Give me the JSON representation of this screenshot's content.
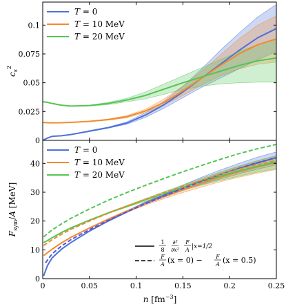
{
  "chart_data": [
    {
      "type": "line",
      "panel": "top",
      "ylabel": "c_s^2",
      "xlim": [
        0,
        0.25
      ],
      "ylim": [
        0,
        0.12
      ],
      "yticks": [
        "0",
        "0.025",
        "0.05",
        "0.075",
        "0.1"
      ],
      "ytick_values": [
        0,
        0.025,
        0.05,
        0.075,
        0.1
      ],
      "legend_position": "top-left",
      "series": [
        {
          "name": "T = 0",
          "color": "#4c72d9",
          "x": [
            0.0,
            0.005,
            0.01,
            0.02,
            0.03,
            0.05,
            0.07,
            0.09,
            0.11,
            0.13,
            0.15,
            0.17,
            0.19,
            0.21,
            0.23,
            0.25
          ],
          "y": [
            0.0,
            0.002,
            0.0035,
            0.004,
            0.005,
            0.008,
            0.011,
            0.015,
            0.022,
            0.031,
            0.042,
            0.054,
            0.066,
            0.078,
            0.089,
            0.097
          ],
          "band_low": [
            0.0,
            0.002,
            0.0035,
            0.004,
            0.005,
            0.0075,
            0.0105,
            0.014,
            0.02,
            0.028,
            0.037,
            0.046,
            0.054,
            0.062,
            0.07,
            0.077
          ],
          "band_high": [
            0.0,
            0.002,
            0.0035,
            0.004,
            0.005,
            0.0085,
            0.0115,
            0.016,
            0.024,
            0.034,
            0.047,
            0.062,
            0.078,
            0.093,
            0.107,
            0.118
          ]
        },
        {
          "name": "T = 10 MeV",
          "color": "#f28a2c",
          "x": [
            0.0,
            0.005,
            0.01,
            0.02,
            0.03,
            0.05,
            0.07,
            0.09,
            0.11,
            0.13,
            0.15,
            0.17,
            0.19,
            0.21,
            0.23,
            0.25
          ],
          "y": [
            0.0155,
            0.0153,
            0.0152,
            0.0153,
            0.0156,
            0.0165,
            0.018,
            0.0205,
            0.0255,
            0.033,
            0.043,
            0.054,
            0.065,
            0.075,
            0.083,
            0.088
          ],
          "band_low": [
            0.0155,
            0.0153,
            0.0152,
            0.0153,
            0.0155,
            0.0162,
            0.0175,
            0.0195,
            0.024,
            0.031,
            0.039,
            0.048,
            0.056,
            0.062,
            0.066,
            0.068
          ],
          "band_high": [
            0.0155,
            0.0153,
            0.0152,
            0.0153,
            0.0157,
            0.0168,
            0.0185,
            0.0215,
            0.027,
            0.036,
            0.047,
            0.06,
            0.074,
            0.088,
            0.1,
            0.108
          ]
        },
        {
          "name": "T = 20 MeV",
          "color": "#55c455",
          "x": [
            0.0,
            0.005,
            0.01,
            0.02,
            0.03,
            0.05,
            0.07,
            0.09,
            0.11,
            0.13,
            0.15,
            0.17,
            0.19,
            0.21,
            0.23,
            0.25
          ],
          "y": [
            0.0335,
            0.033,
            0.032,
            0.0305,
            0.0298,
            0.0302,
            0.032,
            0.035,
            0.039,
            0.0445,
            0.05,
            0.055,
            0.06,
            0.065,
            0.069,
            0.0715
          ],
          "band_low": [
            0.0335,
            0.033,
            0.032,
            0.0304,
            0.0296,
            0.0298,
            0.031,
            0.0335,
            0.036,
            0.04,
            0.044,
            0.047,
            0.049,
            0.05,
            0.0505,
            0.0505
          ],
          "band_high": [
            0.0335,
            0.033,
            0.032,
            0.0306,
            0.03,
            0.0306,
            0.033,
            0.0365,
            0.042,
            0.049,
            0.056,
            0.063,
            0.07,
            0.077,
            0.083,
            0.088
          ]
        }
      ]
    },
    {
      "type": "line",
      "panel": "bottom",
      "xlabel": "n [fm^-3]",
      "ylabel": "F_sym/A [MeV]",
      "xlim": [
        0,
        0.25
      ],
      "ylim": [
        0,
        48
      ],
      "xticks": [
        "0",
        "0.05",
        "0.1",
        "0.15",
        "0.2",
        "0.25"
      ],
      "xtick_values": [
        0,
        0.05,
        0.1,
        0.15,
        0.2,
        0.25
      ],
      "yticks": [
        "0",
        "10",
        "20",
        "30",
        "40"
      ],
      "ytick_values": [
        0,
        10,
        20,
        30,
        40
      ],
      "legend_position": "top-left",
      "style_legend_position": "lower-right",
      "style_legend": [
        {
          "style": "solid",
          "label_parts": [
            "1",
            "8",
            "∂²",
            "∂x²",
            "F",
            "A",
            "|x=1/2"
          ]
        },
        {
          "style": "dashed",
          "label_parts": [
            "F",
            "A",
            "(x = 0) −",
            "F",
            "A",
            "(x = 0.5)"
          ]
        }
      ],
      "series": [
        {
          "name": "T = 0",
          "style": "solid",
          "color": "#4c72d9",
          "x": [
            0.001,
            0.005,
            0.01,
            0.02,
            0.03,
            0.05,
            0.07,
            0.09,
            0.11,
            0.13,
            0.15,
            0.17,
            0.19,
            0.21,
            0.23,
            0.25
          ],
          "y": [
            1.0,
            4.5,
            7.2,
            10.2,
            12.5,
            16.5,
            20.0,
            23.2,
            26.3,
            29.0,
            31.6,
            34.0,
            36.2,
            38.3,
            40.2,
            42.0
          ],
          "band_low": [
            1.0,
            4.5,
            7.2,
            10.2,
            12.5,
            16.4,
            19.8,
            22.9,
            25.8,
            28.3,
            30.6,
            32.7,
            34.6,
            36.4,
            38.0,
            39.5
          ],
          "band_high": [
            1.0,
            4.5,
            7.2,
            10.2,
            12.5,
            16.6,
            20.2,
            23.5,
            26.7,
            29.6,
            32.5,
            35.2,
            37.7,
            40.0,
            42.2,
            44.0
          ]
        },
        {
          "name": "T = 10 MeV",
          "style": "solid",
          "color": "#f28a2c",
          "x": [
            0.001,
            0.005,
            0.01,
            0.02,
            0.03,
            0.05,
            0.07,
            0.09,
            0.11,
            0.13,
            0.15,
            0.17,
            0.19,
            0.21,
            0.23,
            0.25
          ],
          "y": [
            8.0,
            9.0,
            10.2,
            12.4,
            14.3,
            17.6,
            20.6,
            23.4,
            26.0,
            28.5,
            30.9,
            33.1,
            35.2,
            37.1,
            38.8,
            40.3
          ],
          "band_low": [
            8.0,
            9.0,
            10.2,
            12.4,
            14.3,
            17.5,
            20.4,
            23.1,
            25.5,
            27.8,
            29.9,
            31.8,
            33.6,
            35.2,
            36.6,
            37.9
          ],
          "band_high": [
            8.0,
            9.0,
            10.2,
            12.4,
            14.3,
            17.7,
            20.8,
            23.7,
            26.5,
            29.2,
            31.8,
            34.3,
            36.7,
            38.9,
            40.9,
            42.6
          ]
        },
        {
          "name": "T = 20 MeV",
          "style": "solid",
          "color": "#55c455",
          "x": [
            0.001,
            0.005,
            0.01,
            0.02,
            0.03,
            0.05,
            0.07,
            0.09,
            0.11,
            0.13,
            0.15,
            0.17,
            0.19,
            0.21,
            0.23,
            0.25
          ],
          "y": [
            12.5,
            13.2,
            14.2,
            16.0,
            17.6,
            20.3,
            22.8,
            25.1,
            27.4,
            29.6,
            31.7,
            33.7,
            35.6,
            37.4,
            39.0,
            40.5
          ],
          "band_low": [
            12.5,
            13.2,
            14.2,
            16.0,
            17.6,
            20.2,
            22.6,
            24.8,
            26.9,
            28.9,
            30.8,
            32.5,
            34.1,
            35.6,
            37.0,
            38.2
          ],
          "band_high": [
            12.5,
            13.2,
            14.2,
            16.0,
            17.6,
            20.4,
            23.0,
            25.4,
            27.8,
            30.2,
            32.5,
            34.8,
            37.0,
            39.1,
            41.0,
            42.7
          ]
        },
        {
          "name": "T = 0",
          "style": "dashed",
          "color": "#5555dd",
          "in_legend": false,
          "x": [
            0.003,
            0.01,
            0.02,
            0.03,
            0.05,
            0.07,
            0.09,
            0.11,
            0.13,
            0.15,
            0.17,
            0.19,
            0.21,
            0.23,
            0.25
          ],
          "y": [
            5.5,
            8.6,
            11.3,
            13.5,
            17.0,
            20.2,
            23.2,
            26.0,
            28.7,
            31.3,
            33.8,
            36.1,
            38.3,
            40.3,
            42.0
          ]
        },
        {
          "name": "T = 10 MeV",
          "style": "dashed",
          "color": "#f28a2c",
          "in_legend": false,
          "x": [
            0.001,
            0.005,
            0.01,
            0.02,
            0.03,
            0.05,
            0.07,
            0.09,
            0.11,
            0.13,
            0.15,
            0.17,
            0.19,
            0.21,
            0.23,
            0.25
          ],
          "y": [
            11.5,
            12.4,
            13.5,
            15.4,
            17.1,
            20.0,
            22.7,
            25.2,
            27.6,
            29.9,
            32.1,
            34.2,
            36.2,
            38.0,
            39.6,
            41.0
          ]
        },
        {
          "name": "T = 20 MeV",
          "style": "dashed",
          "color": "#55c455",
          "in_legend": false,
          "x": [
            0.001,
            0.005,
            0.01,
            0.02,
            0.03,
            0.05,
            0.07,
            0.09,
            0.11,
            0.13,
            0.15,
            0.17,
            0.19,
            0.21,
            0.23,
            0.25
          ],
          "y": [
            14.5,
            15.6,
            16.9,
            19.0,
            20.9,
            24.2,
            27.2,
            29.9,
            32.4,
            34.8,
            37.1,
            39.3,
            41.4,
            43.4,
            45.1,
            46.6
          ]
        }
      ]
    }
  ]
}
